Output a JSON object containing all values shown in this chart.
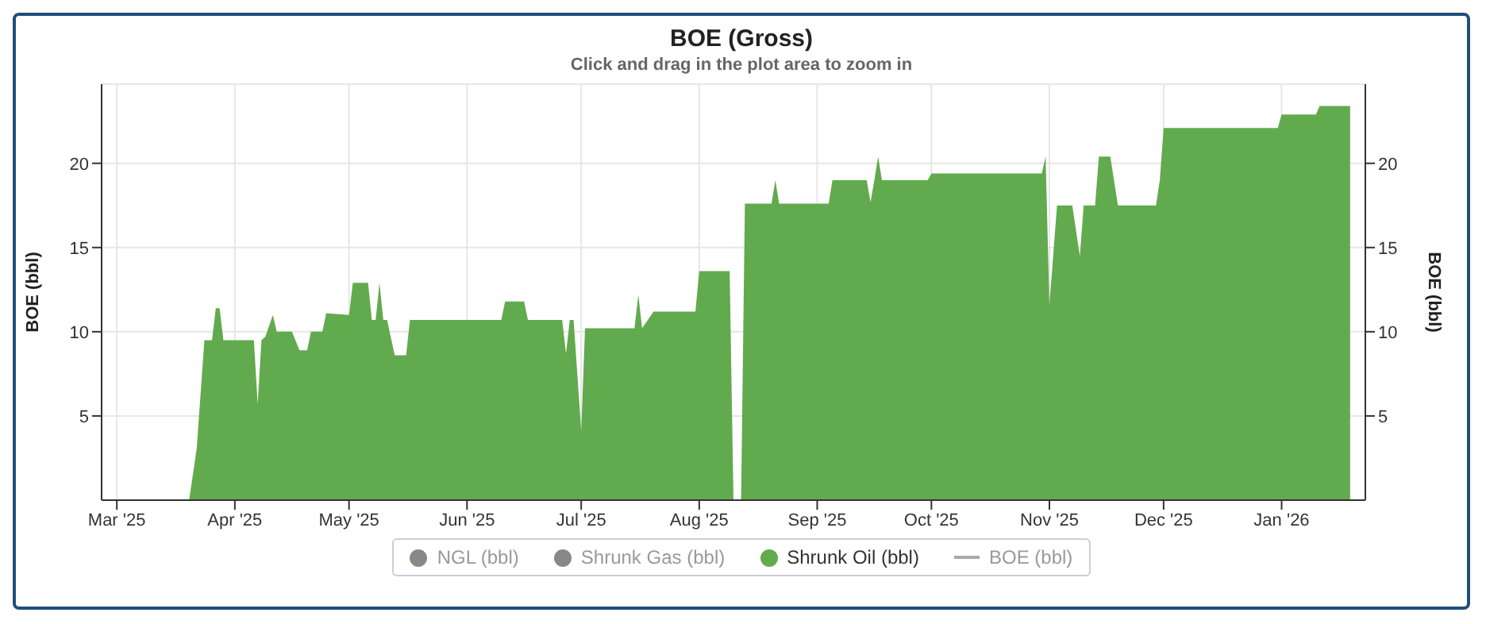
{
  "chart_data": {
    "type": "area",
    "title": "BOE (Gross)",
    "subtitle": "Click and drag in the plot area to zoom in",
    "ylabel": "BOE (bbl)",
    "y2label": "BOE (bbl)",
    "x": [
      "2025-03-01",
      "2025-03-20",
      "2025-03-22",
      "2025-03-24",
      "2025-03-26",
      "2025-03-27",
      "2025-03-28",
      "2025-03-29",
      "2025-04-06",
      "2025-04-07",
      "2025-04-08",
      "2025-04-09",
      "2025-04-11",
      "2025-04-12",
      "2025-04-16",
      "2025-04-18",
      "2025-04-20",
      "2025-04-21",
      "2025-04-24",
      "2025-04-25",
      "2025-05-01",
      "2025-05-02",
      "2025-05-06",
      "2025-05-07",
      "2025-05-08",
      "2025-05-09",
      "2025-05-10",
      "2025-05-11",
      "2025-05-13",
      "2025-05-16",
      "2025-05-17",
      "2025-06-10",
      "2025-06-11",
      "2025-06-16",
      "2025-06-17",
      "2025-06-26",
      "2025-06-27",
      "2025-06-28",
      "2025-06-29",
      "2025-07-01",
      "2025-07-02",
      "2025-07-15",
      "2025-07-16",
      "2025-07-17",
      "2025-07-20",
      "2025-07-31",
      "2025-08-01",
      "2025-08-09",
      "2025-08-10",
      "2025-08-12",
      "2025-08-13",
      "2025-08-20",
      "2025-08-21",
      "2025-08-22",
      "2025-09-04",
      "2025-09-05",
      "2025-09-14",
      "2025-09-15",
      "2025-09-16",
      "2025-09-17",
      "2025-09-18",
      "2025-09-30",
      "2025-10-01",
      "2025-10-30",
      "2025-10-31",
      "2025-11-01",
      "2025-11-03",
      "2025-11-07",
      "2025-11-09",
      "2025-11-10",
      "2025-11-13",
      "2025-11-14",
      "2025-11-17",
      "2025-11-19",
      "2025-11-29",
      "2025-11-30",
      "2025-12-01",
      "2025-12-31",
      "2026-01-01",
      "2026-01-10",
      "2026-01-11",
      "2026-01-19"
    ],
    "series": [
      {
        "name": "NGL (bbl)",
        "type": "scatter",
        "color": "#888888",
        "values": [
          null,
          null,
          null,
          null,
          null,
          null,
          null,
          null,
          null,
          null,
          null,
          null,
          null,
          null,
          null,
          null,
          null,
          null,
          null,
          null,
          null,
          null,
          null,
          null,
          null,
          null,
          null,
          null,
          null,
          null,
          null,
          null,
          null,
          null,
          null,
          null,
          null,
          null,
          null,
          null,
          null,
          null,
          null,
          null,
          null,
          null,
          null,
          null,
          null,
          null,
          null,
          null,
          null,
          null,
          null,
          null,
          null,
          null,
          null,
          null,
          null,
          null,
          null,
          null,
          null,
          null,
          null,
          null,
          null,
          null,
          null,
          null,
          null,
          null,
          null,
          null,
          null,
          null,
          null,
          null,
          null,
          null
        ]
      },
      {
        "name": "Shrunk Gas (bbl)",
        "type": "scatter",
        "color": "#888888",
        "values": [
          null,
          null,
          null,
          null,
          null,
          null,
          null,
          null,
          null,
          null,
          null,
          null,
          null,
          null,
          null,
          null,
          null,
          null,
          null,
          null,
          null,
          null,
          null,
          null,
          null,
          null,
          null,
          null,
          null,
          null,
          null,
          null,
          null,
          null,
          null,
          null,
          null,
          null,
          null,
          null,
          null,
          null,
          null,
          null,
          null,
          null,
          null,
          null,
          null,
          null,
          null,
          null,
          null,
          null,
          null,
          null,
          null,
          null,
          null,
          null,
          null,
          null,
          null,
          null,
          null,
          null,
          null,
          null,
          null,
          null,
          null,
          null,
          null,
          null,
          null,
          null,
          null,
          null,
          null,
          null,
          null,
          null
        ]
      },
      {
        "name": "Shrunk Oil (bbl)",
        "color": "#62aa4e",
        "values": [
          0,
          0,
          3.1,
          9.5,
          9.5,
          11.4,
          11.4,
          9.5,
          9.5,
          5.7,
          9.5,
          9.7,
          11,
          10,
          10,
          8.9,
          8.9,
          10,
          10,
          11.1,
          11,
          12.9,
          12.9,
          10.7,
          10.7,
          12.9,
          10.7,
          10.7,
          8.6,
          8.6,
          10.7,
          10.7,
          11.8,
          11.8,
          10.7,
          10.7,
          8.7,
          10.7,
          10.7,
          4.1,
          10.2,
          10.2,
          12.2,
          10.2,
          11.2,
          11.2,
          13.6,
          13.6,
          0,
          0,
          17.6,
          17.6,
          19,
          17.6,
          17.6,
          19,
          19,
          17.7,
          19,
          20.4,
          19,
          19,
          19.4,
          19.4,
          20.4,
          11.6,
          17.5,
          17.5,
          14.5,
          17.5,
          17.5,
          20.4,
          20.4,
          17.5,
          17.5,
          19,
          22.1,
          22.1,
          22.9,
          22.9,
          23.4,
          23.4
        ]
      },
      {
        "name": "BOE (bbl)",
        "type": "line",
        "color": "#aaaaaa",
        "values": [
          null,
          null,
          null,
          null,
          null,
          null,
          null,
          null,
          null,
          null,
          null,
          null,
          null,
          null,
          null,
          null,
          null,
          null,
          null,
          null,
          null,
          null,
          null,
          null,
          null,
          null,
          null,
          null,
          null,
          null,
          null,
          null,
          null,
          null,
          null,
          null,
          null,
          null,
          null,
          null,
          null,
          null,
          null,
          null,
          null,
          null,
          null,
          null,
          null,
          null,
          null,
          null,
          null,
          null,
          null,
          null,
          null,
          null,
          null,
          null,
          null,
          null,
          null,
          null,
          null,
          null,
          null,
          null,
          null,
          null,
          null,
          null,
          null,
          null,
          null,
          null,
          null,
          null,
          null,
          null,
          null,
          null
        ]
      }
    ],
    "xlim": [
      "2025-02-25",
      "2026-01-23"
    ],
    "xticks": [
      {
        "value": "2025-03-01",
        "label": "Mar '25"
      },
      {
        "value": "2025-04-01",
        "label": "Apr '25"
      },
      {
        "value": "2025-05-01",
        "label": "May '25"
      },
      {
        "value": "2025-06-01",
        "label": "Jun '25"
      },
      {
        "value": "2025-07-01",
        "label": "Jul '25"
      },
      {
        "value": "2025-08-01",
        "label": "Aug '25"
      },
      {
        "value": "2025-09-01",
        "label": "Sep '25"
      },
      {
        "value": "2025-10-01",
        "label": "Oct '25"
      },
      {
        "value": "2025-11-01",
        "label": "Nov '25"
      },
      {
        "value": "2025-12-01",
        "label": "Dec '25"
      },
      {
        "value": "2026-01-01",
        "label": "Jan '26"
      }
    ],
    "ylim": [
      0,
      24.7
    ],
    "yticks": [
      5,
      10,
      15,
      20
    ],
    "y2lim": [
      0,
      24.7
    ],
    "y2ticks": [
      5,
      10,
      15,
      20
    ],
    "grid": true,
    "legend": "bottom"
  }
}
